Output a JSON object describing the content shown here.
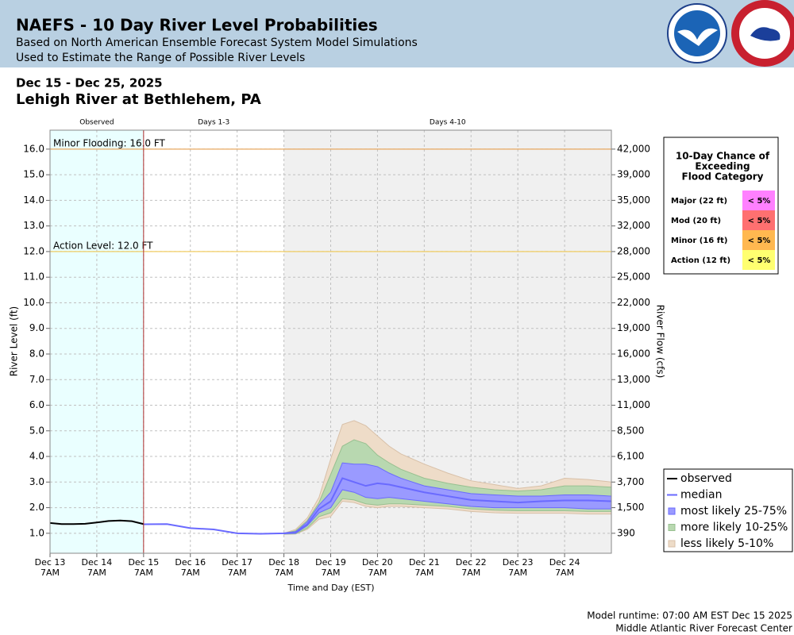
{
  "header": {
    "title": "NAEFS - 10 Day River Level Probabilities",
    "subtitle_1": "Based on North American Ensemble Forecast System Model Simulations",
    "subtitle_2": "Used to Estimate the Range of Possible River Levels"
  },
  "date_range": "Dec 15 - Dec 25, 2025",
  "location": "Lehigh River at Bethlehem, PA",
  "chart_data": {
    "type": "probability-band",
    "ylabel": "River Level (ft)",
    "y2label": "River Flow (cfs)",
    "xlabel": "Time and Day (EST)",
    "xlim": [
      "Dec 13 07:00",
      "Dec 25 07:00"
    ],
    "ylim": [
      0.22,
      16.74
    ],
    "yticks": [
      {
        "value": 1,
        "label": "1.0"
      },
      {
        "value": 2,
        "label": "2.0"
      },
      {
        "value": 3,
        "label": "3.0"
      },
      {
        "value": 4,
        "label": "4.0"
      },
      {
        "value": 5,
        "label": "5.0"
      },
      {
        "value": 6,
        "label": "6.0"
      },
      {
        "value": 7,
        "label": "7.0"
      },
      {
        "value": 8,
        "label": "8.0"
      },
      {
        "value": 9,
        "label": "9.0"
      },
      {
        "value": 10,
        "label": "10.0"
      },
      {
        "value": 11,
        "label": "11.0"
      },
      {
        "value": 12,
        "label": "12.0"
      },
      {
        "value": 13,
        "label": "13.0"
      },
      {
        "value": 14,
        "label": "14.0"
      },
      {
        "value": 15,
        "label": "15.0"
      },
      {
        "value": 16,
        "label": "16.0"
      }
    ],
    "y2ticks": [
      390,
      {
        "value": 1500,
        "label": "1,500"
      },
      {
        "value": 3700,
        "label": "3,700"
      },
      {
        "value": 6100,
        "label": "6,100"
      },
      {
        "value": 8500,
        "label": "8,500"
      },
      {
        "value": 11000,
        "label": "11,000"
      },
      {
        "value": 13000,
        "label": "13,000"
      },
      {
        "value": 16000,
        "label": "16,000"
      },
      {
        "value": 19000,
        "label": "19,000"
      },
      {
        "value": 22000,
        "label": "22,000"
      },
      {
        "value": 25000,
        "label": "25,000"
      },
      {
        "value": 28000,
        "label": "28,000"
      },
      {
        "value": 32000,
        "label": "32,000"
      },
      {
        "value": 35000,
        "label": "35,000"
      },
      {
        "value": 39000,
        "label": "39,000"
      },
      {
        "value": 42000,
        "label": "42,000"
      }
    ],
    "y2_stage": [
      1,
      2,
      3,
      4,
      5,
      6,
      7,
      8,
      9,
      10,
      11,
      12,
      13,
      14,
      15,
      16
    ],
    "xticks": [
      {
        "value": "Dec 13 07:00",
        "label": "Dec 13 7AM"
      },
      {
        "value": "Dec 14 07:00",
        "label": "Dec 14 7AM"
      },
      {
        "value": "Dec 15 07:00",
        "label": "Dec 15 7AM"
      },
      {
        "value": "Dec 16 07:00",
        "label": "Dec 16 7AM"
      },
      {
        "value": "Dec 17 07:00",
        "label": "Dec 17 7AM"
      },
      {
        "value": "Dec 18 07:00",
        "label": "Dec 18 7AM"
      },
      {
        "value": "Dec 19 07:00",
        "label": "Dec 19 7AM"
      },
      {
        "value": "Dec 20 07:00",
        "label": "Dec 20 7AM"
      },
      {
        "value": "Dec 21 07:00",
        "label": "Dec 21 7AM"
      },
      {
        "value": "Dec 22 07:00",
        "label": "Dec 22 7AM"
      },
      {
        "value": "Dec 23 07:00",
        "label": "Dec 23 7AM"
      },
      {
        "value": "Dec 24 07:00",
        "label": "Dec 24 7AM"
      }
    ],
    "grid": true,
    "periods": [
      {
        "label": "Observed",
        "start": "Dec 13 07:00",
        "end": "Dec 15 07:00",
        "color": "#eaffff"
      },
      {
        "label": "Days 1-3",
        "start": "Dec 15 07:00",
        "end": "Dec 18 07:00",
        "color": "#ffffff"
      },
      {
        "label": "Days 4-10",
        "start": "Dec 18 07:00",
        "end": "Dec 25 07:00",
        "color": "#f0f0f0"
      }
    ],
    "thresholds": [
      {
        "label": "Minor Flooding: 16.0 FT",
        "value": 16.0,
        "color": "#e8a860"
      },
      {
        "label": "Action Level: 12.0 FT",
        "value": 12.0,
        "color": "#f0c850"
      }
    ],
    "observed": {
      "name": "observed",
      "color": "#000000",
      "x": [
        "Dec 13 07:00",
        "Dec 13 13:00",
        "Dec 13 19:00",
        "Dec 14 01:00",
        "Dec 14 07:00",
        "Dec 14 13:00",
        "Dec 14 19:00",
        "Dec 15 01:00",
        "Dec 15 07:00"
      ],
      "values": [
        1.4,
        1.36,
        1.36,
        1.37,
        1.42,
        1.48,
        1.5,
        1.47,
        1.36
      ]
    },
    "forecast_x": [
      "Dec 15 07:00",
      "Dec 15 19:00",
      "Dec 16 07:00",
      "Dec 16 19:00",
      "Dec 17 07:00",
      "Dec 17 19:00",
      "Dec 18 07:00",
      "Dec 18 13:00",
      "Dec 18 19:00",
      "Dec 19 01:00",
      "Dec 19 07:00",
      "Dec 19 13:00",
      "Dec 19 19:00",
      "Dec 20 01:00",
      "Dec 20 07:00",
      "Dec 20 13:00",
      "Dec 20 19:00",
      "Dec 21 07:00",
      "Dec 21 19:00",
      "Dec 22 07:00",
      "Dec 22 19:00",
      "Dec 23 07:00",
      "Dec 23 19:00",
      "Dec 24 07:00",
      "Dec 24 19:00",
      "Dec 25 07:00"
    ],
    "bands": [
      {
        "name": "less likely 5-10%",
        "color": "#eedcc8",
        "edge": "#d8c0a8",
        "low": [
          null,
          null,
          null,
          null,
          null,
          null,
          0.96,
          0.97,
          1.15,
          1.55,
          1.65,
          2.25,
          2.2,
          2.05,
          2.0,
          2.05,
          2.05,
          2.0,
          1.95,
          1.85,
          1.8,
          1.78,
          1.78,
          1.78,
          1.75,
          1.75
        ],
        "high": [
          null,
          null,
          null,
          null,
          null,
          null,
          1.0,
          1.15,
          1.6,
          2.4,
          3.9,
          5.25,
          5.4,
          5.2,
          4.8,
          4.4,
          4.1,
          3.7,
          3.35,
          3.05,
          2.9,
          2.75,
          2.85,
          3.15,
          3.1,
          3.0
        ]
      },
      {
        "name": "more likely 10-25%",
        "color": "#b8d8b0",
        "edge": "#98c090",
        "low": [
          null,
          null,
          null,
          null,
          null,
          null,
          0.97,
          0.98,
          1.2,
          1.65,
          1.8,
          2.35,
          2.3,
          2.15,
          2.1,
          2.15,
          2.15,
          2.1,
          2.05,
          1.95,
          1.9,
          1.88,
          1.88,
          1.88,
          1.85,
          1.85
        ],
        "high": [
          null,
          null,
          null,
          null,
          null,
          null,
          1.0,
          1.1,
          1.5,
          2.2,
          3.3,
          4.4,
          4.65,
          4.5,
          4.05,
          3.75,
          3.5,
          3.15,
          2.95,
          2.8,
          2.7,
          2.65,
          2.7,
          2.85,
          2.85,
          2.8
        ]
      },
      {
        "name": "most likely 25-75%",
        "color": "#9a9aff",
        "edge": "#6a6aff",
        "low": [
          null,
          null,
          null,
          null,
          null,
          null,
          0.98,
          1.0,
          1.3,
          1.8,
          2.0,
          2.7,
          2.6,
          2.4,
          2.35,
          2.4,
          2.35,
          2.25,
          2.15,
          2.05,
          2.0,
          2.0,
          2.0,
          2.0,
          1.95,
          1.95
        ],
        "high": [
          null,
          null,
          null,
          null,
          null,
          null,
          1.0,
          1.05,
          1.45,
          2.1,
          2.6,
          3.75,
          3.7,
          3.7,
          3.6,
          3.35,
          3.15,
          2.85,
          2.7,
          2.55,
          2.5,
          2.45,
          2.45,
          2.5,
          2.5,
          2.45
        ]
      }
    ],
    "median": {
      "name": "median",
      "color": "#6a6aff",
      "values": [
        1.35,
        1.36,
        1.2,
        1.15,
        1.0,
        0.98,
        1.0,
        1.05,
        1.35,
        1.95,
        2.25,
        3.15,
        3.0,
        2.85,
        2.95,
        2.9,
        2.8,
        2.6,
        2.45,
        2.3,
        2.25,
        2.2,
        2.25,
        2.28,
        2.28,
        2.25
      ]
    }
  },
  "flood_table": {
    "title_lines": [
      "10-Day Chance of",
      "Exceeding",
      "Flood Category"
    ],
    "rows": [
      {
        "category": "Major (22 ft)",
        "chance": "< 5%",
        "color": "#ff80ff"
      },
      {
        "category": "Mod (20 ft)",
        "chance": "< 5%",
        "color": "#ff7070"
      },
      {
        "category": "Minor (16 ft)",
        "chance": "< 5%",
        "color": "#ffb850"
      },
      {
        "category": "Action (12 ft)",
        "chance": "< 5%",
        "color": "#ffff70"
      }
    ]
  },
  "footer": {
    "runtime": "Model runtime: 07:00 AM EST Dec 15 2025",
    "center": "Middle Atlantic River Forecast Center"
  }
}
